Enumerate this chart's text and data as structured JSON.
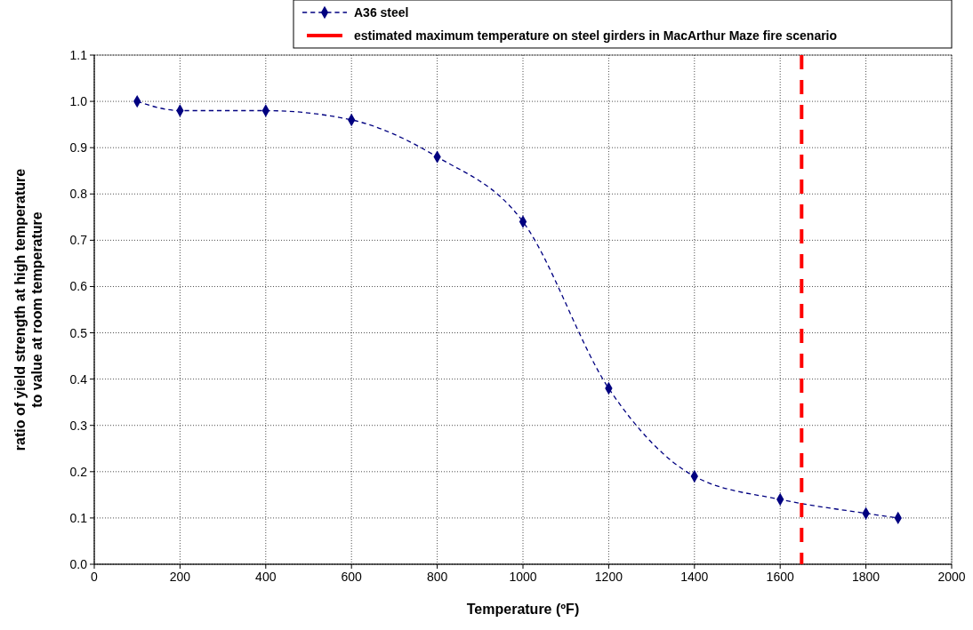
{
  "chart_data": {
    "type": "line",
    "xlabel": "Temperature (ºF)",
    "ylabel": "ratio of yield strength at high temperature\nto value at room temperature",
    "x": [
      100,
      200,
      400,
      600,
      800,
      1000,
      1200,
      1400,
      1600,
      1800,
      1875
    ],
    "series": [
      {
        "name": "A36 steel",
        "color": "#000080",
        "values": [
          1.0,
          0.98,
          0.98,
          0.96,
          0.88,
          0.74,
          0.38,
          0.19,
          0.14,
          0.11,
          0.1
        ]
      }
    ],
    "xlim": [
      0,
      2000
    ],
    "xticks": [
      0,
      200,
      400,
      600,
      800,
      1000,
      1200,
      1400,
      1600,
      1800,
      2000
    ],
    "ylim": [
      0,
      1.1
    ],
    "yticks": [
      {
        "value": 0,
        "label": "0.0"
      },
      0.1,
      0.2,
      0.3,
      0.4,
      0.5,
      0.6,
      0.7,
      0.8,
      0.9,
      {
        "value": 1,
        "label": "1.0"
      },
      1.1
    ],
    "ref_lines": [
      {
        "axis": "x",
        "value": 1650,
        "label": "estimated maximum temperature on steel girders in MacArthur Maze fire scenario",
        "color": "#ff0000",
        "line_style": "dashed"
      }
    ],
    "grid": true,
    "legend": "top",
    "marker": "diamond",
    "line_style": "dashed"
  }
}
